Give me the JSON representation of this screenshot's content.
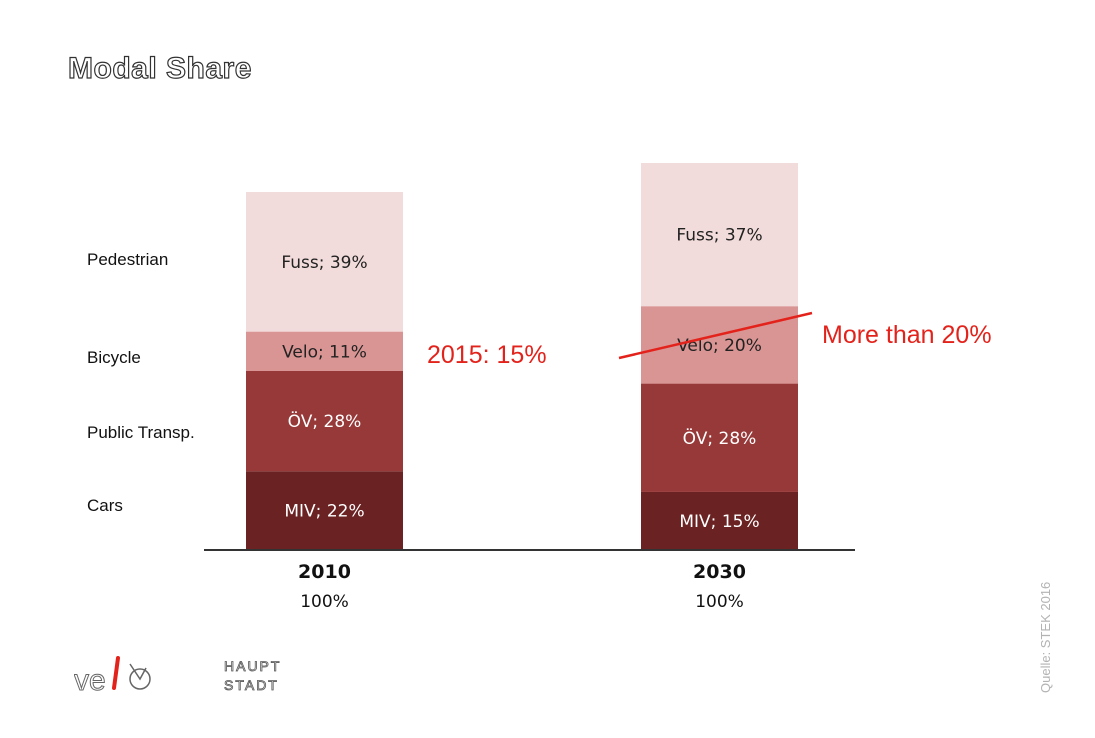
{
  "title": "Modal Share",
  "row_labels": [
    "Pedestrian",
    "Bicycle",
    "Public Transp.",
    "Cars"
  ],
  "chart_data": {
    "type": "bar",
    "stacked": true,
    "categories": [
      "2010",
      "2030"
    ],
    "totals": [
      "100%",
      "100%"
    ],
    "series": [
      {
        "name": "MIV",
        "values": [
          22,
          15
        ],
        "labels": [
          "MIV; 22%",
          "MIV; 15%"
        ],
        "color": "#6b2222",
        "text_color": "#ffffff"
      },
      {
        "name": "ÖV",
        "values": [
          28,
          28
        ],
        "labels": [
          "ÖV; 28%",
          "ÖV; 28%"
        ],
        "color": "#983939",
        "text_color": "#ffffff"
      },
      {
        "name": "Velo",
        "values": [
          11,
          20
        ],
        "labels": [
          "Velo; 11%",
          "Velo; 20%"
        ],
        "color": "#d99594",
        "text_color": "#222222"
      },
      {
        "name": "Fuss",
        "values": [
          39,
          37
        ],
        "labels": [
          "Fuss; 39%",
          "Fuss; 37%"
        ],
        "color": "#f2dcdb",
        "text_color": "#222222"
      }
    ]
  },
  "annotations": {
    "left": "2015: 15%",
    "right": "More than 20%"
  },
  "source": "Quelle: STEK 2016",
  "logo": {
    "word1": "HAUPT",
    "word2": "STADT",
    "color": "#e3231b"
  }
}
